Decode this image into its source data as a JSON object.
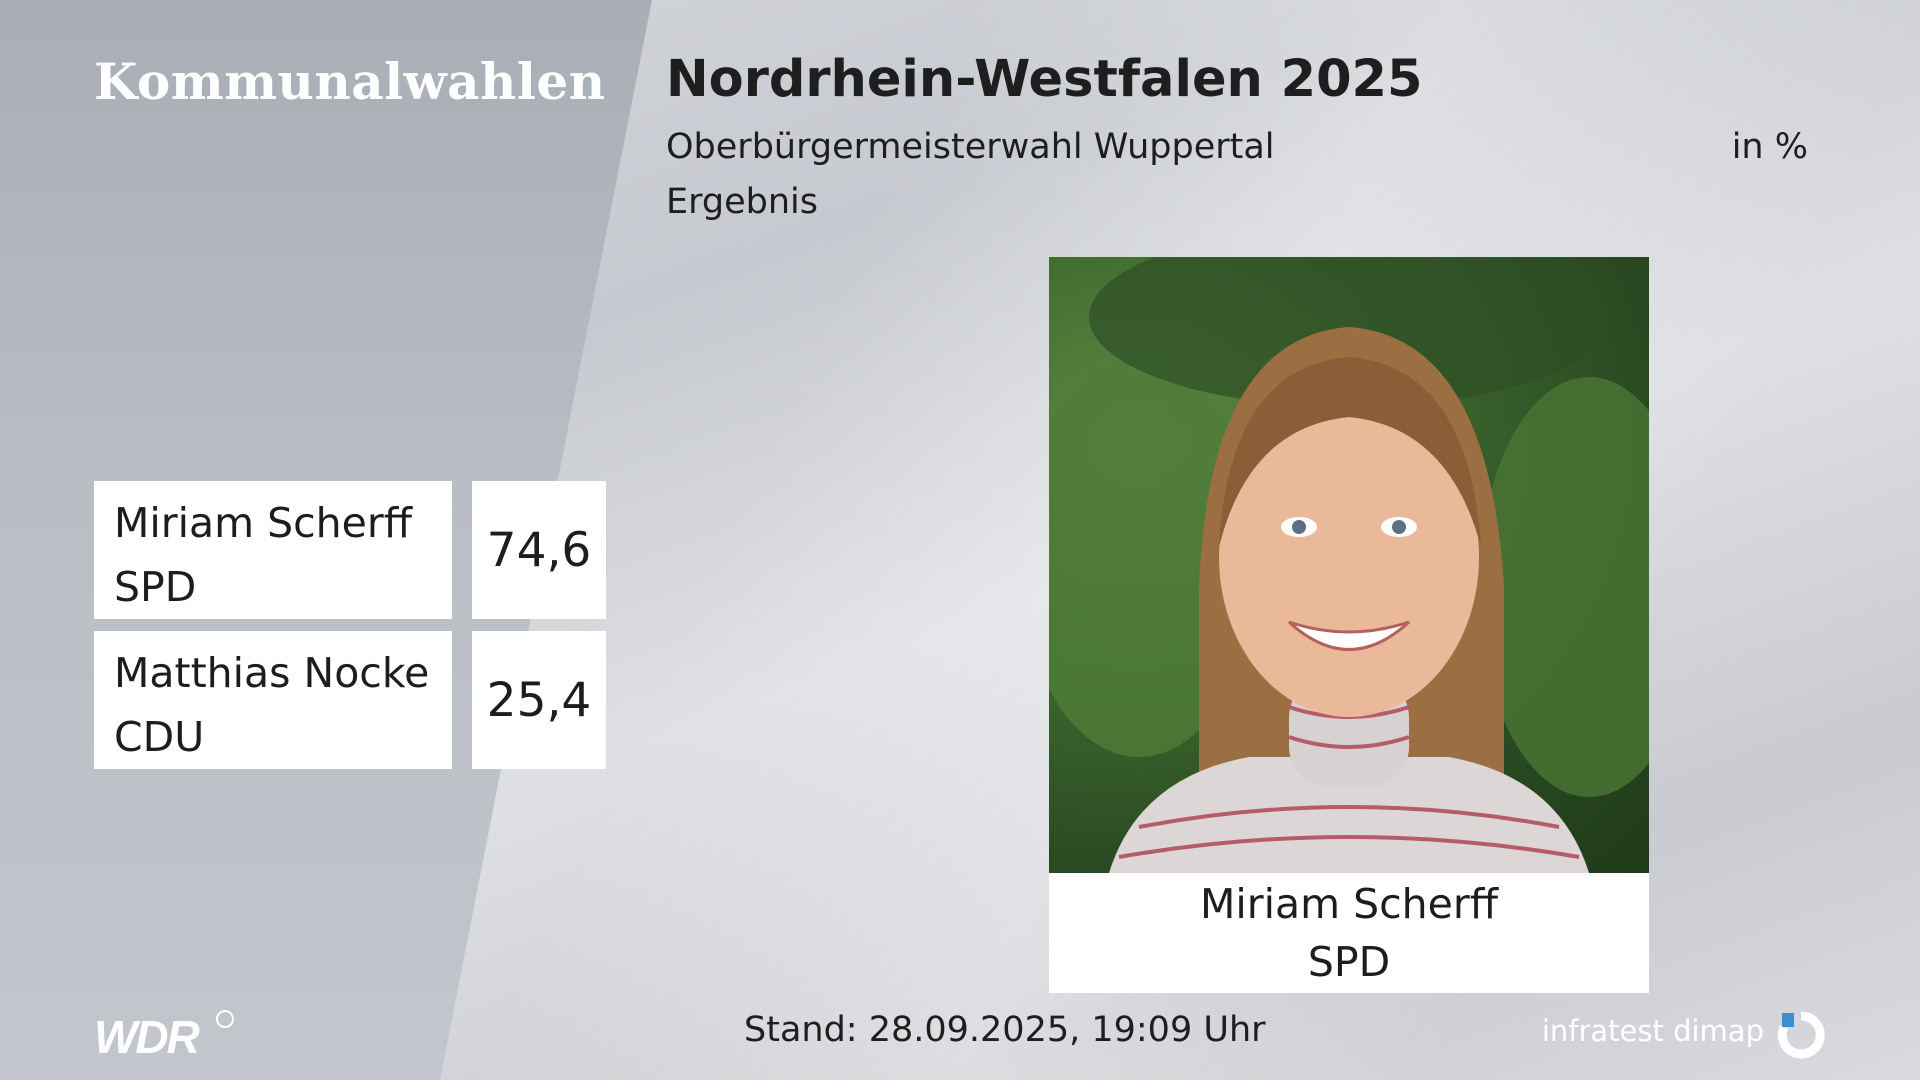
{
  "header": {
    "brand": "Kommunalwahlen",
    "title": "Nordrhein-Westfalen 2025",
    "subtitle": "Oberbürgermeisterwahl Wuppertal",
    "unit": "in %",
    "status": "Ergebnis"
  },
  "results": [
    {
      "name": "Miriam Scherff",
      "party": "SPD",
      "value": "74,6"
    },
    {
      "name": "Matthias Nocke",
      "party": "CDU",
      "value": "25,4"
    }
  ],
  "winner": {
    "name": "Miriam Scherff",
    "party": "SPD"
  },
  "footer": {
    "broadcaster": "WDR",
    "stand": "Stand: 28.09.2025, 19:09 Uhr",
    "pollster": "infratest dimap"
  },
  "colors": {
    "bar_bg": "#ffffff",
    "logo_accent": "#3a8fd0"
  }
}
